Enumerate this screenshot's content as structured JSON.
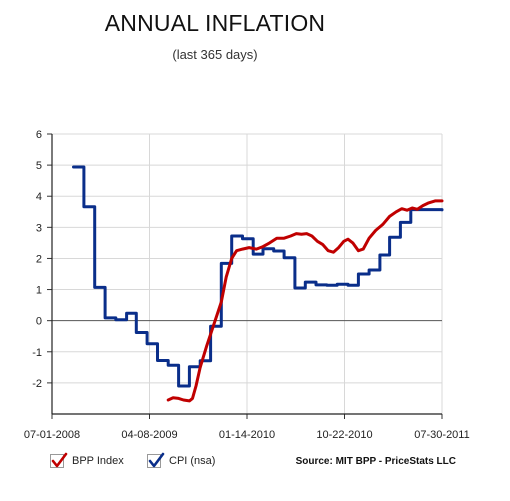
{
  "title": "ANNUAL INFLATION",
  "subtitle": "(last 365 days)",
  "source": "Source: MIT BPP - PriceStats LLC",
  "colors": {
    "bpp": "#c00000",
    "cpi": "#0a2e8a",
    "zero_line": "#555555",
    "grid": "#d8d8d8"
  },
  "legend": [
    {
      "label": "BPP Index",
      "color": "#c00000",
      "icon": "checkmark-icon"
    },
    {
      "label": "CPI (nsa)",
      "color": "#0a2e8a",
      "icon": "checkmark-icon"
    }
  ],
  "chart_data": {
    "type": "line",
    "title": "ANNUAL INFLATION",
    "subtitle": "(last 365 days)",
    "xlabel": "",
    "ylabel": "",
    "x_ticks": [
      "07-01-2008",
      "04-08-2009",
      "01-14-2010",
      "10-22-2010",
      "07-30-2011"
    ],
    "xlim": [
      "2008-07-01",
      "2011-07-30"
    ],
    "ylim": [
      -3,
      6
    ],
    "y_ticks": [
      -2,
      -1,
      0,
      1,
      2,
      3,
      4,
      5,
      6
    ],
    "grid": true,
    "legend_position": "bottom-left",
    "series": [
      {
        "name": "CPI (nsa)",
        "step": true,
        "color": "#0a2e8a",
        "points": [
          [
            "2008-09-01",
            4.94
          ],
          [
            "2008-10-01",
            3.66
          ],
          [
            "2008-11-01",
            1.07
          ],
          [
            "2008-12-01",
            0.09
          ],
          [
            "2009-01-01",
            0.03
          ],
          [
            "2009-02-01",
            0.24
          ],
          [
            "2009-03-01",
            -0.38
          ],
          [
            "2009-04-01",
            -0.74
          ],
          [
            "2009-05-01",
            -1.28
          ],
          [
            "2009-06-01",
            -1.43
          ],
          [
            "2009-07-01",
            -2.1
          ],
          [
            "2009-08-01",
            -1.48
          ],
          [
            "2009-09-01",
            -1.29
          ],
          [
            "2009-10-01",
            -0.18
          ],
          [
            "2009-11-01",
            1.84
          ],
          [
            "2009-12-01",
            2.72
          ],
          [
            "2010-01-01",
            2.63
          ],
          [
            "2010-02-01",
            2.14
          ],
          [
            "2010-03-01",
            2.31
          ],
          [
            "2010-04-01",
            2.24
          ],
          [
            "2010-05-01",
            2.02
          ],
          [
            "2010-06-01",
            1.05
          ],
          [
            "2010-07-01",
            1.24
          ],
          [
            "2010-08-01",
            1.15
          ],
          [
            "2010-09-01",
            1.14
          ],
          [
            "2010-10-01",
            1.17
          ],
          [
            "2010-11-01",
            1.14
          ],
          [
            "2010-12-01",
            1.5
          ],
          [
            "2011-01-01",
            1.63
          ],
          [
            "2011-02-01",
            2.11
          ],
          [
            "2011-03-01",
            2.68
          ],
          [
            "2011-04-01",
            3.16
          ],
          [
            "2011-05-01",
            3.57
          ],
          [
            "2011-07-30",
            3.56
          ]
        ]
      },
      {
        "name": "BPP Index",
        "step": false,
        "color": "#c00000",
        "points": [
          [
            "2009-06-01",
            -2.55
          ],
          [
            "2009-06-15",
            -2.48
          ],
          [
            "2009-07-01",
            -2.5
          ],
          [
            "2009-07-15",
            -2.55
          ],
          [
            "2009-08-01",
            -2.58
          ],
          [
            "2009-08-10",
            -2.5
          ],
          [
            "2009-08-20",
            -2.1
          ],
          [
            "2009-09-01",
            -1.5
          ],
          [
            "2009-09-20",
            -0.8
          ],
          [
            "2009-10-05",
            -0.3
          ],
          [
            "2009-10-20",
            0.2
          ],
          [
            "2009-11-01",
            0.6
          ],
          [
            "2009-11-15",
            1.4
          ],
          [
            "2009-12-01",
            2.0
          ],
          [
            "2009-12-15",
            2.25
          ],
          [
            "2010-01-01",
            2.3
          ],
          [
            "2010-01-20",
            2.35
          ],
          [
            "2010-02-10",
            2.3
          ],
          [
            "2010-03-01",
            2.38
          ],
          [
            "2010-03-20",
            2.5
          ],
          [
            "2010-04-10",
            2.65
          ],
          [
            "2010-05-01",
            2.65
          ],
          [
            "2010-05-20",
            2.72
          ],
          [
            "2010-06-05",
            2.8
          ],
          [
            "2010-06-20",
            2.78
          ],
          [
            "2010-07-05",
            2.8
          ],
          [
            "2010-07-20",
            2.72
          ],
          [
            "2010-08-05",
            2.55
          ],
          [
            "2010-08-20",
            2.45
          ],
          [
            "2010-09-05",
            2.25
          ],
          [
            "2010-09-20",
            2.2
          ],
          [
            "2010-10-05",
            2.35
          ],
          [
            "2010-10-20",
            2.55
          ],
          [
            "2010-11-01",
            2.62
          ],
          [
            "2010-11-15",
            2.5
          ],
          [
            "2010-12-01",
            2.25
          ],
          [
            "2010-12-15",
            2.3
          ],
          [
            "2011-01-01",
            2.65
          ],
          [
            "2011-01-20",
            2.9
          ],
          [
            "2011-02-10",
            3.1
          ],
          [
            "2011-03-01",
            3.35
          ],
          [
            "2011-03-20",
            3.5
          ],
          [
            "2011-04-05",
            3.6
          ],
          [
            "2011-04-20",
            3.55
          ],
          [
            "2011-05-05",
            3.62
          ],
          [
            "2011-05-20",
            3.58
          ],
          [
            "2011-06-05",
            3.7
          ],
          [
            "2011-06-20",
            3.78
          ],
          [
            "2011-07-10",
            3.85
          ],
          [
            "2011-07-30",
            3.85
          ]
        ]
      }
    ]
  }
}
